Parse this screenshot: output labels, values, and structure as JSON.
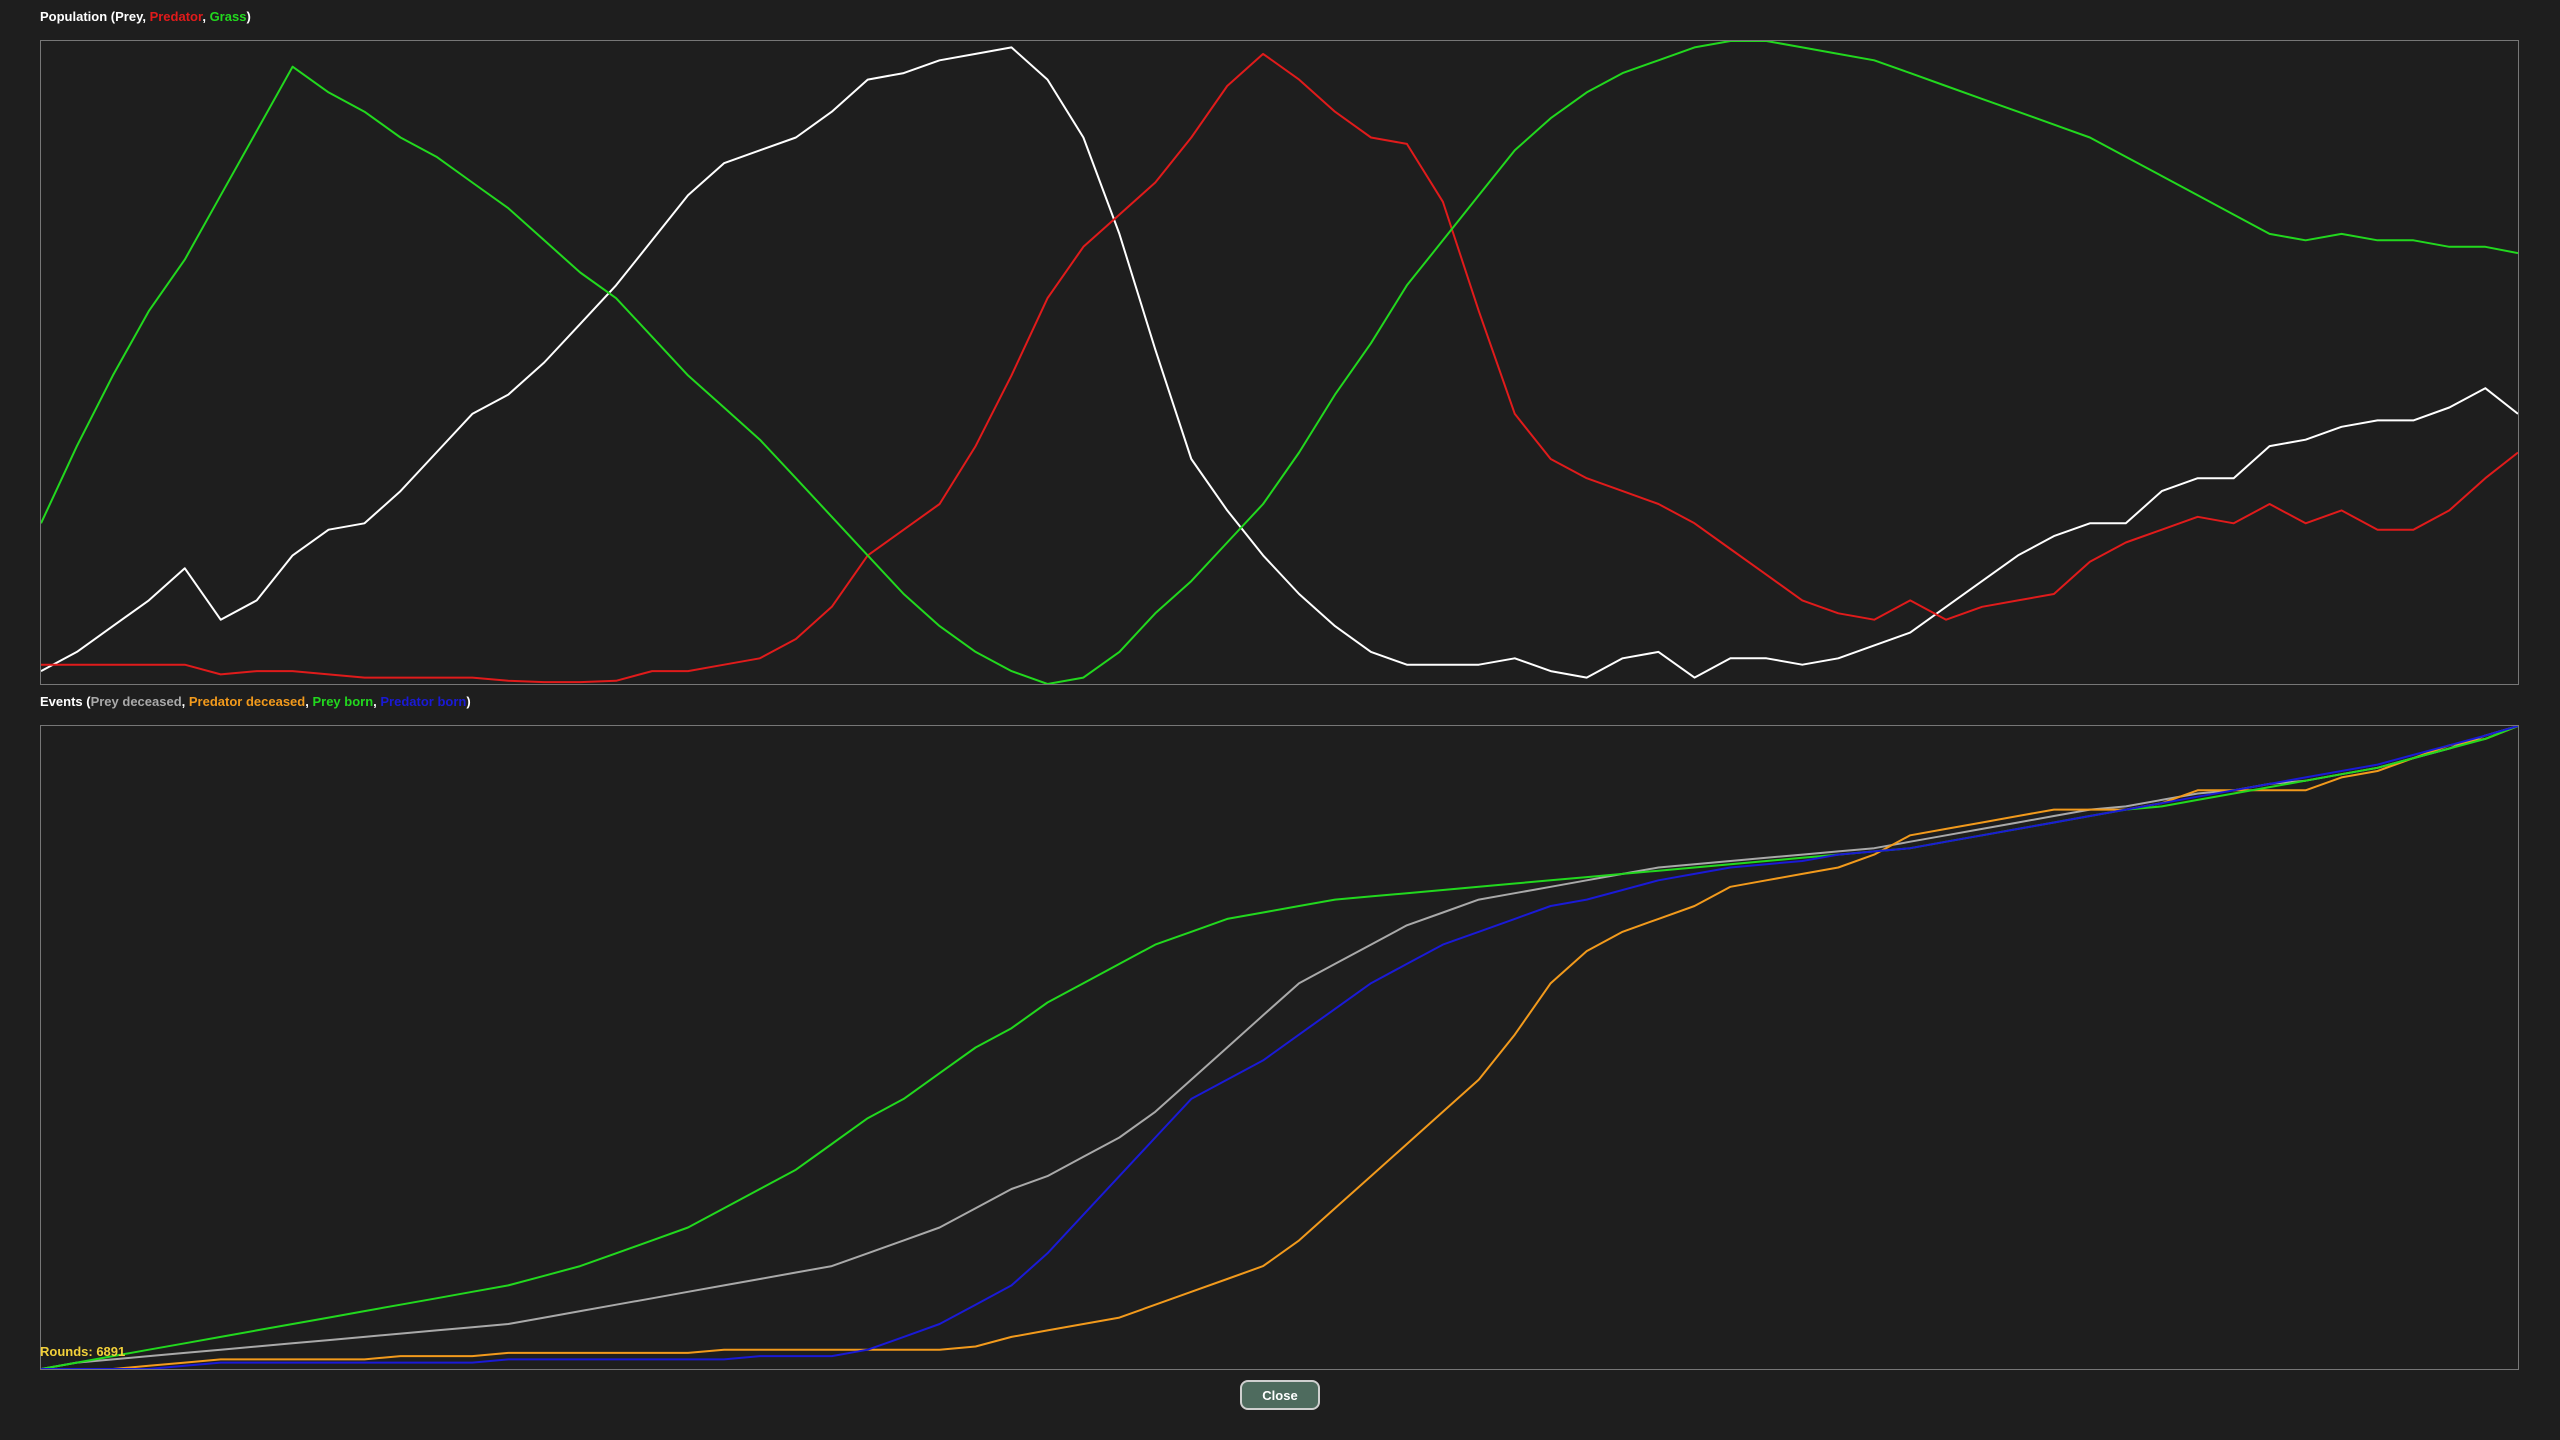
{
  "colors": {
    "background": "#1e1e1e",
    "frame": "#777777",
    "title": "#ffffff",
    "rounds": "#f2d03a",
    "prey": "#ffffff",
    "predator": "#e01b1b",
    "grass": "#22d81e",
    "prey_deceased": "#a9a9a9",
    "predator_deceased": "#f29a1c",
    "prey_born": "#22d81e",
    "predator_born": "#1a1ad6"
  },
  "rounds_label": "Rounds: 6891",
  "close_label": "Close",
  "chart_data": [
    {
      "type": "line",
      "title_prefix": "Population (",
      "title_suffix": ")",
      "separator": ", ",
      "xlabel": "",
      "ylabel": "",
      "xlim": [
        0,
        6891
      ],
      "ylim": [
        0,
        1
      ],
      "grid": false,
      "x": [
        0,
        100,
        200,
        300,
        400,
        500,
        600,
        700,
        800,
        900,
        1000,
        1100,
        1200,
        1300,
        1400,
        1500,
        1600,
        1700,
        1800,
        1900,
        2000,
        2100,
        2200,
        2300,
        2400,
        2500,
        2600,
        2700,
        2800,
        2900,
        3000,
        3100,
        3200,
        3300,
        3400,
        3500,
        3600,
        3700,
        3800,
        3900,
        4000,
        4100,
        4200,
        4300,
        4400,
        4500,
        4600,
        4700,
        4800,
        4900,
        5000,
        5100,
        5200,
        5300,
        5400,
        5500,
        5600,
        5700,
        5800,
        5900,
        6000,
        6100,
        6200,
        6300,
        6400,
        6500,
        6600,
        6700,
        6800,
        6891
      ],
      "series": [
        {
          "name": "Prey",
          "color": "#ffffff",
          "values": [
            0.02,
            0.05,
            0.09,
            0.13,
            0.18,
            0.1,
            0.13,
            0.2,
            0.24,
            0.25,
            0.3,
            0.36,
            0.42,
            0.45,
            0.5,
            0.56,
            0.62,
            0.69,
            0.76,
            0.81,
            0.83,
            0.85,
            0.89,
            0.94,
            0.95,
            0.97,
            0.98,
            0.99,
            0.94,
            0.85,
            0.7,
            0.52,
            0.35,
            0.27,
            0.2,
            0.14,
            0.09,
            0.05,
            0.03,
            0.03,
            0.03,
            0.04,
            0.02,
            0.01,
            0.04,
            0.05,
            0.01,
            0.04,
            0.04,
            0.03,
            0.04,
            0.06,
            0.08,
            0.12,
            0.16,
            0.2,
            0.23,
            0.25,
            0.25,
            0.3,
            0.32,
            0.32,
            0.37,
            0.38,
            0.4,
            0.41,
            0.41,
            0.43,
            0.46,
            0.42
          ]
        },
        {
          "name": "Predator",
          "color": "#e01b1b",
          "values": [
            0.03,
            0.03,
            0.03,
            0.03,
            0.03,
            0.015,
            0.02,
            0.02,
            0.015,
            0.01,
            0.01,
            0.01,
            0.01,
            0.005,
            0.003,
            0.003,
            0.005,
            0.02,
            0.02,
            0.03,
            0.04,
            0.07,
            0.12,
            0.2,
            0.24,
            0.28,
            0.37,
            0.48,
            0.6,
            0.68,
            0.73,
            0.78,
            0.85,
            0.93,
            0.98,
            0.94,
            0.89,
            0.85,
            0.84,
            0.75,
            0.58,
            0.42,
            0.35,
            0.32,
            0.3,
            0.28,
            0.25,
            0.21,
            0.17,
            0.13,
            0.11,
            0.1,
            0.13,
            0.1,
            0.12,
            0.13,
            0.14,
            0.19,
            0.22,
            0.24,
            0.26,
            0.25,
            0.28,
            0.25,
            0.27,
            0.24,
            0.24,
            0.27,
            0.32,
            0.36
          ]
        },
        {
          "name": "Grass",
          "color": "#22d81e",
          "values": [
            0.25,
            0.37,
            0.48,
            0.58,
            0.66,
            0.76,
            0.86,
            0.96,
            0.92,
            0.89,
            0.85,
            0.82,
            0.78,
            0.74,
            0.69,
            0.64,
            0.6,
            0.54,
            0.48,
            0.43,
            0.38,
            0.32,
            0.26,
            0.2,
            0.14,
            0.09,
            0.05,
            0.02,
            0.0,
            0.01,
            0.05,
            0.11,
            0.16,
            0.22,
            0.28,
            0.36,
            0.45,
            0.53,
            0.62,
            0.69,
            0.76,
            0.83,
            0.88,
            0.92,
            0.95,
            0.97,
            0.99,
            1.0,
            1.0,
            0.99,
            0.98,
            0.97,
            0.95,
            0.93,
            0.91,
            0.89,
            0.87,
            0.85,
            0.82,
            0.79,
            0.76,
            0.73,
            0.7,
            0.69,
            0.7,
            0.69,
            0.69,
            0.68,
            0.68,
            0.67
          ]
        }
      ]
    },
    {
      "type": "line",
      "title_prefix": "Events (",
      "title_suffix": ")",
      "separator": ", ",
      "xlabel": "",
      "ylabel": "",
      "xlim": [
        0,
        6891
      ],
      "ylim": [
        0,
        1
      ],
      "grid": false,
      "x": [
        0,
        100,
        200,
        300,
        400,
        500,
        600,
        700,
        800,
        900,
        1000,
        1100,
        1200,
        1300,
        1400,
        1500,
        1600,
        1700,
        1800,
        1900,
        2000,
        2100,
        2200,
        2300,
        2400,
        2500,
        2600,
        2700,
        2800,
        2900,
        3000,
        3100,
        3200,
        3300,
        3400,
        3500,
        3600,
        3700,
        3800,
        3900,
        4000,
        4100,
        4200,
        4300,
        4400,
        4500,
        4600,
        4700,
        4800,
        4900,
        5000,
        5100,
        5200,
        5300,
        5400,
        5500,
        5600,
        5700,
        5800,
        5900,
        6000,
        6100,
        6200,
        6300,
        6400,
        6500,
        6600,
        6700,
        6800,
        6891
      ],
      "series": [
        {
          "name": "Prey deceased",
          "color": "#a9a9a9",
          "values": [
            0.0,
            0.01,
            0.015,
            0.02,
            0.025,
            0.03,
            0.035,
            0.04,
            0.045,
            0.05,
            0.055,
            0.06,
            0.065,
            0.07,
            0.08,
            0.09,
            0.1,
            0.11,
            0.12,
            0.13,
            0.14,
            0.15,
            0.16,
            0.18,
            0.2,
            0.22,
            0.25,
            0.28,
            0.3,
            0.33,
            0.36,
            0.4,
            0.45,
            0.5,
            0.55,
            0.6,
            0.63,
            0.66,
            0.69,
            0.71,
            0.73,
            0.74,
            0.75,
            0.76,
            0.77,
            0.78,
            0.785,
            0.79,
            0.795,
            0.8,
            0.805,
            0.81,
            0.82,
            0.83,
            0.84,
            0.85,
            0.86,
            0.87,
            0.875,
            0.885,
            0.895,
            0.9,
            0.91,
            0.915,
            0.925,
            0.935,
            0.95,
            0.965,
            0.985,
            1.0
          ]
        },
        {
          "name": "Predator deceased",
          "color": "#f29a1c",
          "values": [
            0.0,
            0.0,
            0.0,
            0.005,
            0.01,
            0.015,
            0.015,
            0.015,
            0.015,
            0.015,
            0.02,
            0.02,
            0.02,
            0.025,
            0.025,
            0.025,
            0.025,
            0.025,
            0.025,
            0.03,
            0.03,
            0.03,
            0.03,
            0.03,
            0.03,
            0.03,
            0.035,
            0.05,
            0.06,
            0.07,
            0.08,
            0.1,
            0.12,
            0.14,
            0.16,
            0.2,
            0.25,
            0.3,
            0.35,
            0.4,
            0.45,
            0.52,
            0.6,
            0.65,
            0.68,
            0.7,
            0.72,
            0.75,
            0.76,
            0.77,
            0.78,
            0.8,
            0.83,
            0.84,
            0.85,
            0.86,
            0.87,
            0.87,
            0.87,
            0.88,
            0.9,
            0.9,
            0.9,
            0.9,
            0.92,
            0.93,
            0.95,
            0.97,
            0.98,
            1.0
          ]
        },
        {
          "name": "Prey born",
          "color": "#22d81e",
          "values": [
            0.0,
            0.01,
            0.02,
            0.03,
            0.04,
            0.05,
            0.06,
            0.07,
            0.08,
            0.09,
            0.1,
            0.11,
            0.12,
            0.13,
            0.145,
            0.16,
            0.18,
            0.2,
            0.22,
            0.25,
            0.28,
            0.31,
            0.35,
            0.39,
            0.42,
            0.46,
            0.5,
            0.53,
            0.57,
            0.6,
            0.63,
            0.66,
            0.68,
            0.7,
            0.71,
            0.72,
            0.73,
            0.735,
            0.74,
            0.745,
            0.75,
            0.755,
            0.76,
            0.765,
            0.77,
            0.775,
            0.78,
            0.785,
            0.79,
            0.795,
            0.8,
            0.805,
            0.81,
            0.82,
            0.83,
            0.84,
            0.85,
            0.86,
            0.87,
            0.875,
            0.885,
            0.895,
            0.905,
            0.915,
            0.925,
            0.935,
            0.95,
            0.965,
            0.98,
            1.0
          ]
        },
        {
          "name": "Predator born",
          "color": "#1a1ad6",
          "values": [
            0.0,
            0.0,
            0.0,
            0.0,
            0.005,
            0.01,
            0.01,
            0.01,
            0.01,
            0.01,
            0.01,
            0.01,
            0.01,
            0.015,
            0.015,
            0.015,
            0.015,
            0.015,
            0.015,
            0.015,
            0.02,
            0.02,
            0.02,
            0.03,
            0.05,
            0.07,
            0.1,
            0.13,
            0.18,
            0.24,
            0.3,
            0.36,
            0.42,
            0.45,
            0.48,
            0.52,
            0.56,
            0.6,
            0.63,
            0.66,
            0.68,
            0.7,
            0.72,
            0.73,
            0.745,
            0.76,
            0.77,
            0.78,
            0.785,
            0.79,
            0.8,
            0.805,
            0.81,
            0.82,
            0.83,
            0.84,
            0.85,
            0.86,
            0.87,
            0.88,
            0.89,
            0.9,
            0.91,
            0.92,
            0.93,
            0.94,
            0.955,
            0.97,
            0.985,
            1.0
          ]
        }
      ]
    }
  ]
}
